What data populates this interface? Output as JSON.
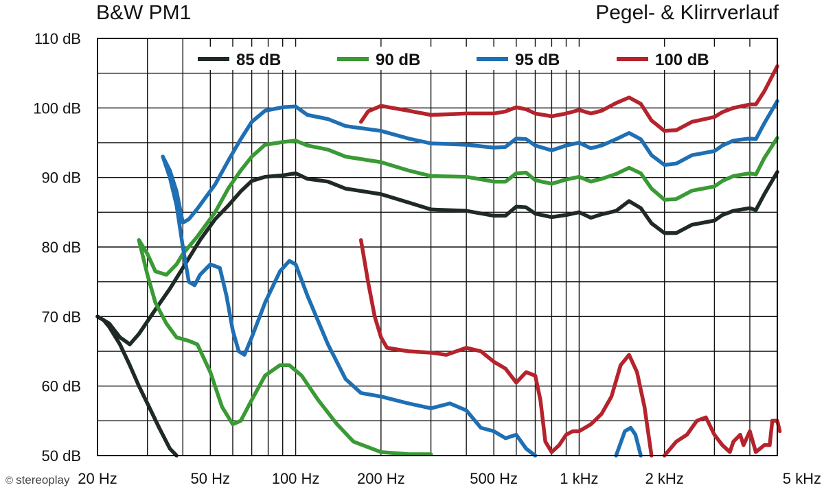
{
  "header": {
    "title": "B&W PM1",
    "subtitle": "Pegel- & Klirrverlauf"
  },
  "watermark": {
    "icon": "copyright-icon",
    "text": "stereoplay"
  },
  "chart_data": {
    "type": "line",
    "x_scale": "log",
    "xlim": [
      20,
      5000
    ],
    "ylim": [
      50,
      110
    ],
    "grid": true,
    "legend_position": "top",
    "y_ticks": [
      50,
      60,
      70,
      80,
      90,
      100,
      110
    ],
    "y_tick_labels": [
      "50 dB",
      "60 dB",
      "70 dB",
      "80 dB",
      "90 dB",
      "100 dB",
      "110 dB"
    ],
    "x_ticks": [
      20,
      50,
      100,
      200,
      500,
      1000,
      2000,
      5000
    ],
    "x_tick_labels": [
      "20 Hz",
      "50 Hz",
      "100 Hz",
      "200 Hz",
      "500 Hz",
      "1 kHz",
      "2 kHz",
      "5 kHz"
    ],
    "series": [
      {
        "name": "85 dB",
        "color": "#1f2a24",
        "response": [
          [
            20,
            70
          ],
          [
            22,
            69
          ],
          [
            24,
            67
          ],
          [
            25,
            66.5
          ],
          [
            26,
            66
          ],
          [
            28,
            67.5
          ],
          [
            32,
            71
          ],
          [
            36,
            74
          ],
          [
            40,
            77
          ],
          [
            46,
            81
          ],
          [
            52,
            84
          ],
          [
            58,
            86
          ],
          [
            64,
            88
          ],
          [
            70,
            89.5
          ],
          [
            78,
            90.1
          ],
          [
            90,
            90.3
          ],
          [
            100,
            90.6
          ],
          [
            110,
            89.8
          ],
          [
            130,
            89.4
          ],
          [
            150,
            88.4
          ],
          [
            200,
            87.6
          ],
          [
            250,
            86.4
          ],
          [
            300,
            85.4
          ],
          [
            400,
            85.2
          ],
          [
            500,
            84.5
          ],
          [
            550,
            84.5
          ],
          [
            600,
            85.8
          ],
          [
            650,
            85.7
          ],
          [
            700,
            84.8
          ],
          [
            800,
            84.3
          ],
          [
            900,
            84.6
          ],
          [
            1000,
            85
          ],
          [
            1100,
            84.2
          ],
          [
            1200,
            84.7
          ],
          [
            1350,
            85.2
          ],
          [
            1500,
            86.6
          ],
          [
            1650,
            85.6
          ],
          [
            1800,
            83.4
          ],
          [
            2000,
            82
          ],
          [
            2200,
            82
          ],
          [
            2500,
            83.2
          ],
          [
            3000,
            83.8
          ],
          [
            3200,
            84.6
          ],
          [
            3500,
            85.2
          ],
          [
            4000,
            85.6
          ],
          [
            4200,
            85.3
          ],
          [
            4500,
            87.6
          ],
          [
            5000,
            90.8
          ]
        ],
        "distortion": [
          [
            20,
            70
          ],
          [
            21,
            69.5
          ],
          [
            22,
            68.5
          ],
          [
            24,
            66
          ],
          [
            26,
            63
          ],
          [
            28,
            60
          ],
          [
            30,
            57.5
          ],
          [
            33,
            54
          ],
          [
            36,
            51
          ],
          [
            38,
            50
          ]
        ]
      },
      {
        "name": "90 dB",
        "color": "#3a9a35",
        "response": [
          [
            28,
            81
          ],
          [
            30,
            79
          ],
          [
            32,
            76.5
          ],
          [
            35,
            76
          ],
          [
            38,
            77.5
          ],
          [
            40,
            79
          ],
          [
            45,
            81.5
          ],
          [
            52,
            85
          ],
          [
            58,
            88.5
          ],
          [
            64,
            91
          ],
          [
            70,
            93
          ],
          [
            78,
            94.7
          ],
          [
            90,
            95.1
          ],
          [
            100,
            95.3
          ],
          [
            110,
            94.6
          ],
          [
            130,
            94
          ],
          [
            150,
            93
          ],
          [
            200,
            92.2
          ],
          [
            250,
            91
          ],
          [
            300,
            90.2
          ],
          [
            400,
            90.1
          ],
          [
            500,
            89.4
          ],
          [
            550,
            89.4
          ],
          [
            600,
            90.6
          ],
          [
            650,
            90.7
          ],
          [
            700,
            89.6
          ],
          [
            800,
            89.1
          ],
          [
            900,
            89.7
          ],
          [
            1000,
            90.1
          ],
          [
            1100,
            89.4
          ],
          [
            1200,
            89.8
          ],
          [
            1350,
            90.5
          ],
          [
            1500,
            91.4
          ],
          [
            1650,
            90.6
          ],
          [
            1800,
            88.4
          ],
          [
            2000,
            86.8
          ],
          [
            2200,
            86.9
          ],
          [
            2500,
            88.1
          ],
          [
            3000,
            88.7
          ],
          [
            3200,
            89.5
          ],
          [
            3500,
            90.2
          ],
          [
            4000,
            90.6
          ],
          [
            4200,
            90.4
          ],
          [
            4500,
            92.8
          ],
          [
            5000,
            95.7
          ]
        ],
        "distortion": [
          [
            28,
            81
          ],
          [
            30,
            76
          ],
          [
            32,
            72
          ],
          [
            35,
            69
          ],
          [
            38,
            67
          ],
          [
            42,
            66.5
          ],
          [
            45,
            66
          ],
          [
            50,
            62
          ],
          [
            55,
            57
          ],
          [
            60,
            54.5
          ],
          [
            64,
            55
          ],
          [
            70,
            58
          ],
          [
            78,
            61.5
          ],
          [
            88,
            63
          ],
          [
            95,
            63
          ],
          [
            105,
            61.5
          ],
          [
            120,
            58
          ],
          [
            140,
            54.5
          ],
          [
            160,
            52
          ],
          [
            200,
            50.5
          ],
          [
            250,
            50.2
          ],
          [
            300,
            50.2
          ]
        ]
      },
      {
        "name": "95 dB",
        "color": "#1f6fb4",
        "response": [
          [
            34,
            93
          ],
          [
            36,
            91
          ],
          [
            38,
            88
          ],
          [
            40,
            83.5
          ],
          [
            42,
            84
          ],
          [
            45,
            85.5
          ],
          [
            52,
            89
          ],
          [
            58,
            92.5
          ],
          [
            64,
            95.5
          ],
          [
            70,
            98
          ],
          [
            78,
            99.6
          ],
          [
            90,
            100.1
          ],
          [
            100,
            100.2
          ],
          [
            110,
            99
          ],
          [
            130,
            98.4
          ],
          [
            150,
            97.4
          ],
          [
            200,
            96.7
          ],
          [
            250,
            95.6
          ],
          [
            300,
            94.9
          ],
          [
            400,
            94.7
          ],
          [
            500,
            94.3
          ],
          [
            550,
            94.4
          ],
          [
            600,
            95.6
          ],
          [
            650,
            95.5
          ],
          [
            700,
            94.6
          ],
          [
            800,
            93.9
          ],
          [
            900,
            94.6
          ],
          [
            1000,
            95
          ],
          [
            1100,
            94.2
          ],
          [
            1200,
            94.6
          ],
          [
            1350,
            95.5
          ],
          [
            1500,
            96.4
          ],
          [
            1650,
            95.5
          ],
          [
            1800,
            93.2
          ],
          [
            2000,
            91.8
          ],
          [
            2200,
            92
          ],
          [
            2500,
            93.2
          ],
          [
            3000,
            93.8
          ],
          [
            3200,
            94.6
          ],
          [
            3500,
            95.3
          ],
          [
            4000,
            95.6
          ],
          [
            4200,
            95.5
          ],
          [
            4500,
            97.8
          ],
          [
            5000,
            101
          ]
        ],
        "distortion": [
          [
            34,
            93
          ],
          [
            36,
            90
          ],
          [
            38,
            86
          ],
          [
            40,
            80
          ],
          [
            42,
            75
          ],
          [
            44,
            74.5
          ],
          [
            46,
            76
          ],
          [
            50,
            77.5
          ],
          [
            54,
            77
          ],
          [
            57,
            73
          ],
          [
            60,
            68
          ],
          [
            63,
            65
          ],
          [
            66,
            64.5
          ],
          [
            70,
            67
          ],
          [
            78,
            72
          ],
          [
            88,
            76.5
          ],
          [
            95,
            78
          ],
          [
            100,
            77.5
          ],
          [
            110,
            73
          ],
          [
            130,
            66
          ],
          [
            150,
            61
          ],
          [
            170,
            59
          ],
          [
            200,
            58.5
          ],
          [
            250,
            57.5
          ],
          [
            300,
            56.8
          ],
          [
            350,
            57.5
          ],
          [
            400,
            56.5
          ],
          [
            450,
            54
          ],
          [
            500,
            53.5
          ],
          [
            550,
            52.5
          ],
          [
            600,
            53
          ],
          [
            650,
            51
          ],
          [
            700,
            50
          ]
        ],
        "distortion_2": [
          [
            1350,
            50
          ],
          [
            1450,
            53.5
          ],
          [
            1520,
            54
          ],
          [
            1580,
            53
          ],
          [
            1650,
            50
          ]
        ]
      },
      {
        "name": "100 dB",
        "color": "#b5232c",
        "response": [
          [
            170,
            98
          ],
          [
            180,
            99.5
          ],
          [
            200,
            100.3
          ],
          [
            250,
            99.6
          ],
          [
            300,
            99
          ],
          [
            400,
            99.2
          ],
          [
            500,
            99.2
          ],
          [
            550,
            99.5
          ],
          [
            600,
            100.1
          ],
          [
            650,
            99.8
          ],
          [
            700,
            99.2
          ],
          [
            800,
            98.8
          ],
          [
            900,
            99.2
          ],
          [
            1000,
            99.7
          ],
          [
            1100,
            99.2
          ],
          [
            1200,
            99.6
          ],
          [
            1350,
            100.7
          ],
          [
            1500,
            101.5
          ],
          [
            1650,
            100.6
          ],
          [
            1800,
            98.2
          ],
          [
            2000,
            96.7
          ],
          [
            2200,
            96.8
          ],
          [
            2500,
            98
          ],
          [
            3000,
            98.7
          ],
          [
            3200,
            99.4
          ],
          [
            3500,
            100
          ],
          [
            4000,
            100.5
          ],
          [
            4200,
            100.5
          ],
          [
            4500,
            102.4
          ],
          [
            5000,
            106
          ]
        ],
        "distortion": [
          [
            170,
            81
          ],
          [
            180,
            75
          ],
          [
            190,
            70
          ],
          [
            200,
            67
          ],
          [
            210,
            65.5
          ],
          [
            250,
            65
          ],
          [
            300,
            64.8
          ],
          [
            340,
            64.5
          ],
          [
            400,
            65.5
          ],
          [
            450,
            65
          ],
          [
            500,
            63.5
          ],
          [
            550,
            62.5
          ],
          [
            600,
            60.5
          ],
          [
            650,
            62
          ],
          [
            700,
            61.5
          ],
          [
            730,
            58
          ],
          [
            760,
            52
          ],
          [
            800,
            50.5
          ],
          [
            850,
            51.5
          ],
          [
            900,
            53
          ],
          [
            950,
            53.5
          ],
          [
            1000,
            53.5
          ],
          [
            1100,
            54.5
          ],
          [
            1200,
            56
          ],
          [
            1300,
            58.5
          ],
          [
            1400,
            63
          ],
          [
            1500,
            64.5
          ],
          [
            1600,
            62
          ],
          [
            1700,
            57
          ],
          [
            1800,
            50
          ]
        ],
        "distortion_2": [
          [
            2000,
            50
          ],
          [
            2200,
            52
          ],
          [
            2400,
            53
          ],
          [
            2600,
            55
          ],
          [
            2800,
            55.5
          ],
          [
            3000,
            53
          ],
          [
            3200,
            51.5
          ],
          [
            3400,
            50.5
          ],
          [
            3500,
            52
          ],
          [
            3700,
            53
          ],
          [
            3800,
            51.5
          ],
          [
            4000,
            53.5
          ],
          [
            4200,
            50.5
          ],
          [
            4500,
            51.5
          ],
          [
            4700,
            51.5
          ],
          [
            4800,
            55
          ],
          [
            5000,
            55
          ],
          [
            5100,
            53.5
          ]
        ]
      }
    ]
  }
}
